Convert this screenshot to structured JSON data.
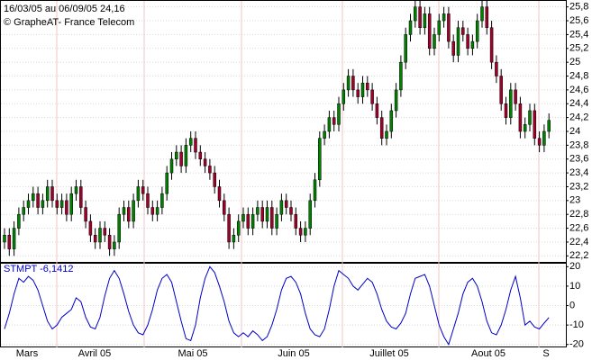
{
  "chart_data": [
    {
      "type": "candlestick",
      "title": "16/03/05 au 06/09/05  24,16",
      "subtitle": "© GrapheAT- France Telecom",
      "x_labels": [
        "Mars",
        "Avril 05",
        "Mai 05",
        "Juin 05",
        "Juillet 05",
        "Aout 05",
        "S"
      ],
      "up_color": "#008000",
      "down_color": "#a0002a",
      "ylim": [
        22.1,
        25.9
      ],
      "yticks": [
        {
          "value": 22.2,
          "label": "22,2"
        },
        {
          "value": 22.4,
          "label": "22,4"
        },
        {
          "value": 22.6,
          "label": "22,6"
        },
        {
          "value": 22.8,
          "label": "22,8"
        },
        23,
        {
          "value": 23.2,
          "label": "23,2"
        },
        {
          "value": 23.4,
          "label": "23,4"
        },
        {
          "value": 23.6,
          "label": "23,6"
        },
        {
          "value": 23.8,
          "label": "23,8"
        },
        24,
        {
          "value": 24.2,
          "label": "24,2"
        },
        {
          "value": 24.4,
          "label": "24,4"
        },
        {
          "value": 24.6,
          "label": "24,6"
        },
        {
          "value": 24.8,
          "label": "24,8"
        },
        25,
        {
          "value": 25.2,
          "label": "25,2"
        },
        {
          "value": 25.4,
          "label": "25,4"
        },
        {
          "value": 25.6,
          "label": "25,6"
        },
        {
          "value": 25.8,
          "label": "25,8"
        }
      ],
      "grid": true,
      "open": [
        22.4,
        22.5,
        22.3,
        22.6,
        22.8,
        22.9,
        23.0,
        23.1,
        22.9,
        23.0,
        23.2,
        23.0,
        22.9,
        23.0,
        22.8,
        23.1,
        23.2,
        22.9,
        22.7,
        22.5,
        22.4,
        22.6,
        22.5,
        22.3,
        22.4,
        22.8,
        22.9,
        22.7,
        23.0,
        23.2,
        23.1,
        22.9,
        22.8,
        22.9,
        23.1,
        23.4,
        23.6,
        23.7,
        23.5,
        23.8,
        23.9,
        23.7,
        23.6,
        23.5,
        23.4,
        23.2,
        23.0,
        22.8,
        22.4,
        22.5,
        22.7,
        22.8,
        22.6,
        22.8,
        22.9,
        22.7,
        22.9,
        22.6,
        22.8,
        23.0,
        22.9,
        22.8,
        22.6,
        22.5,
        22.6,
        23.0,
        23.3,
        23.9,
        24.0,
        24.2,
        24.1,
        24.4,
        24.6,
        24.8,
        24.6,
        24.5,
        24.7,
        24.6,
        24.4,
        24.2,
        23.9,
        24.0,
        24.3,
        24.6,
        25.0,
        25.4,
        25.6,
        25.8,
        25.5,
        25.7,
        25.2,
        25.4,
        25.6,
        25.7,
        25.3,
        25.1,
        25.5,
        25.4,
        25.2,
        25.3,
        25.6,
        25.8,
        25.5,
        25.0,
        24.8,
        24.4,
        24.2,
        24.6,
        24.4,
        24.0,
        24.1,
        24.3,
        23.9,
        23.8,
        24.0
      ],
      "high": [
        22.6,
        22.6,
        22.7,
        22.9,
        23.0,
        23.1,
        23.2,
        23.2,
        23.1,
        23.3,
        23.3,
        23.1,
        23.1,
        23.1,
        23.2,
        23.3,
        23.3,
        23.0,
        22.8,
        22.6,
        22.7,
        22.7,
        22.6,
        22.5,
        22.9,
        23.0,
        23.0,
        23.1,
        23.3,
        23.3,
        23.2,
        23.0,
        23.0,
        23.2,
        23.5,
        23.7,
        23.8,
        23.8,
        23.9,
        24.0,
        24.0,
        23.8,
        23.7,
        23.6,
        23.5,
        23.3,
        23.1,
        22.9,
        22.6,
        22.8,
        22.9,
        22.9,
        22.9,
        23.0,
        23.0,
        23.0,
        23.0,
        22.9,
        23.1,
        23.1,
        23.0,
        22.9,
        22.7,
        22.7,
        23.1,
        23.4,
        24.0,
        24.1,
        24.3,
        24.3,
        24.5,
        24.7,
        24.9,
        24.9,
        24.7,
        24.8,
        24.8,
        24.7,
        24.5,
        24.3,
        24.1,
        24.4,
        24.7,
        25.1,
        25.5,
        25.7,
        25.9,
        25.9,
        25.8,
        25.8,
        25.5,
        25.7,
        25.8,
        25.8,
        25.4,
        25.6,
        25.6,
        25.5,
        25.4,
        25.7,
        25.9,
        25.9,
        25.6,
        25.1,
        24.9,
        24.5,
        24.7,
        24.7,
        24.5,
        24.2,
        24.4,
        24.4,
        24.0,
        24.1,
        24.26
      ],
      "low": [
        22.3,
        22.2,
        22.2,
        22.5,
        22.7,
        22.8,
        22.9,
        22.8,
        22.8,
        22.9,
        22.9,
        22.8,
        22.8,
        22.7,
        22.7,
        23.0,
        22.8,
        22.6,
        22.4,
        22.3,
        22.3,
        22.4,
        22.2,
        22.2,
        22.3,
        22.7,
        22.6,
        22.6,
        22.9,
        23.0,
        22.8,
        22.7,
        22.7,
        22.8,
        23.0,
        23.3,
        23.5,
        23.4,
        23.4,
        23.7,
        23.6,
        23.5,
        23.4,
        23.3,
        23.1,
        22.9,
        22.7,
        22.3,
        22.3,
        22.4,
        22.6,
        22.5,
        22.5,
        22.7,
        22.6,
        22.6,
        22.5,
        22.5,
        22.7,
        22.8,
        22.7,
        22.5,
        22.4,
        22.4,
        22.5,
        22.9,
        23.2,
        23.8,
        23.9,
        24.0,
        24.0,
        24.3,
        24.5,
        24.5,
        24.4,
        24.4,
        24.5,
        24.3,
        24.1,
        23.8,
        23.8,
        23.9,
        24.2,
        24.5,
        24.9,
        25.3,
        25.5,
        25.4,
        25.4,
        25.1,
        25.1,
        25.3,
        25.5,
        25.2,
        25.0,
        25.0,
        25.3,
        25.1,
        25.1,
        25.2,
        25.5,
        25.4,
        24.9,
        24.7,
        24.3,
        24.1,
        24.1,
        24.3,
        23.9,
        23.9,
        24.0,
        23.8,
        23.7,
        23.7,
        23.9
      ],
      "close": [
        22.5,
        22.3,
        22.6,
        22.8,
        22.9,
        23.0,
        23.1,
        22.9,
        23.0,
        23.2,
        23.0,
        22.9,
        23.0,
        22.8,
        23.1,
        23.2,
        22.9,
        22.7,
        22.5,
        22.4,
        22.6,
        22.5,
        22.3,
        22.4,
        22.8,
        22.9,
        22.7,
        23.0,
        23.2,
        23.1,
        22.9,
        22.8,
        22.9,
        23.1,
        23.4,
        23.6,
        23.7,
        23.5,
        23.8,
        23.9,
        23.7,
        23.6,
        23.5,
        23.4,
        23.2,
        23.0,
        22.8,
        22.4,
        22.5,
        22.7,
        22.8,
        22.6,
        22.8,
        22.9,
        22.7,
        22.9,
        22.6,
        22.8,
        23.0,
        22.9,
        22.8,
        22.6,
        22.5,
        22.6,
        23.0,
        23.3,
        23.9,
        24.0,
        24.2,
        24.1,
        24.4,
        24.6,
        24.8,
        24.6,
        24.5,
        24.7,
        24.6,
        24.4,
        24.2,
        23.9,
        24.0,
        24.3,
        24.6,
        25.0,
        25.4,
        25.6,
        25.8,
        25.5,
        25.7,
        25.2,
        25.4,
        25.6,
        25.7,
        25.3,
        25.1,
        25.5,
        25.4,
        25.2,
        25.3,
        25.6,
        25.8,
        25.5,
        25.0,
        24.8,
        24.4,
        24.2,
        24.6,
        24.4,
        24.0,
        24.1,
        24.3,
        23.9,
        23.8,
        24.0,
        24.16
      ]
    },
    {
      "type": "line",
      "title": "STMPT -6,1412",
      "color": "#0000c8",
      "ylim": [
        -21.5,
        22
      ],
      "yticks": [
        20,
        10,
        0,
        -10,
        -20
      ],
      "values": [
        -12,
        -4,
        6,
        14,
        12,
        15,
        13,
        8,
        0,
        -8,
        -12,
        -10,
        -6,
        -4,
        -2,
        4,
        2,
        -6,
        -11,
        -12,
        -6,
        5,
        14,
        18,
        14,
        6,
        -3,
        -10,
        -14,
        -15,
        -10,
        -2,
        8,
        14,
        16,
        12,
        2,
        -8,
        -17,
        -18,
        -10,
        4,
        14,
        20,
        17,
        10,
        2,
        -8,
        -14,
        -16,
        -14,
        -16,
        -13,
        -15,
        -18,
        -16,
        -10,
        -2,
        8,
        14,
        15,
        12,
        6,
        -4,
        -12,
        -15,
        -16,
        -12,
        -2,
        10,
        18,
        16,
        14,
        10,
        8,
        11,
        14,
        12,
        6,
        -2,
        -8,
        -11,
        -12,
        -9,
        -4,
        6,
        14,
        15,
        16,
        10,
        0,
        -10,
        -16,
        -20,
        -12,
        -4,
        6,
        12,
        14,
        10,
        2,
        -8,
        -14,
        -15,
        -10,
        -2,
        8,
        15,
        4,
        -10,
        -8,
        -11,
        -12,
        -9,
        -6.1412
      ]
    }
  ]
}
